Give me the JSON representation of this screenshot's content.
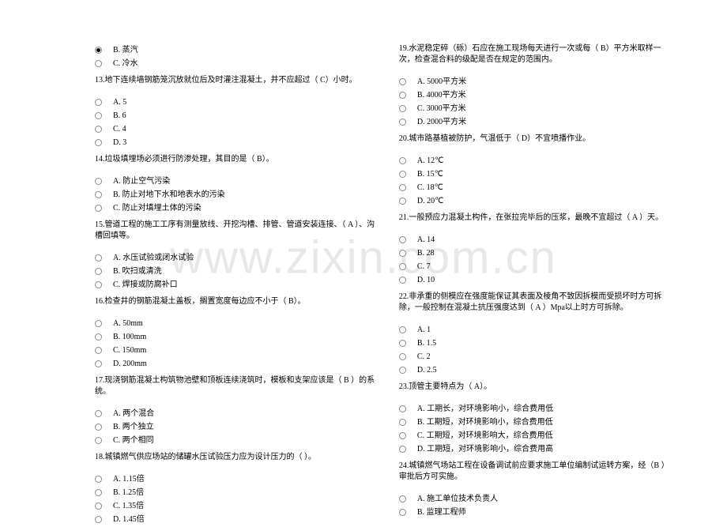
{
  "watermark": "www.zixin.com.cn",
  "left": {
    "pre_options": [
      {
        "label": "B. 蒸汽",
        "selected": true
      },
      {
        "label": "C. 冷水",
        "selected": false
      }
    ],
    "q13": {
      "text": "13.地下连续墙钢筋笼沉放就位后及时灌注混凝土，并不应超过（  C）小时。",
      "opts": [
        "A. 5",
        "B. 6",
        "C. 4",
        "D. 3"
      ]
    },
    "q14": {
      "text": "14.垃圾填埋场必须进行防渗处理，其目的是（  B）。",
      "opts": [
        "A. 防止空气污染",
        "B. 防止对地下水和地表水的污染",
        "C. 防止对填埋土体的污染"
      ]
    },
    "q15": {
      "text": "15.管道工程的施工工序有测量放线、开挖沟槽、排管、管道安装连接、（ A ）、沟槽回填等。",
      "opts": [
        "A. 水压试验或闭水试验",
        "B. 吹扫或清洗",
        "C. 焊接或防腐补口"
      ]
    },
    "q16": {
      "text": "16.检查井的钢筋混凝土盖板，搁置宽度每边应不小于（  B）。",
      "opts": [
        "A. 50mm",
        "B. 100mm",
        "C. 150mm",
        "D. 200mm"
      ]
    },
    "q17": {
      "text": "17.现浇钢筋混凝土构筑物池壁和顶板连续浇筑时，模板和支架应该是（ B  ）的系统。",
      "opts": [
        "A. 两个混合",
        "B. 两个独立",
        "C. 两个相同"
      ]
    },
    "q18": {
      "text": "18.城镇燃气供应场站的储罐水压试验压力应为设计压力的（  ）。",
      "opts": [
        "A. 1.15倍",
        "B. 1.25倍",
        "C. 1.35倍",
        "D. 1.45倍"
      ]
    }
  },
  "right": {
    "q19": {
      "text": "19.水泥稳定碎（砾）石应在施工现场每天进行一次或每（  B）平方米取样一次，检查混合料的级配是否在规定的范围内。",
      "opts": [
        "A. 5000平方米",
        "B. 4000平方米",
        "C. 3000平方米",
        "D. 2000平方米"
      ]
    },
    "q20": {
      "text": "20.城市路基植被防护，气温低于（  D）不宜喷播作业。",
      "opts": [
        "A. 12℃",
        "B. 15℃",
        "C. 18℃",
        "D. 20℃"
      ]
    },
    "q21": {
      "text": "21.一般预应力混凝土构件，在张拉完毕后的压浆，最晚不宜超过（ A ）天。",
      "opts": [
        "A. 14",
        "B. 28",
        "C. 7",
        "D. 10"
      ]
    },
    "q22": {
      "text": "22.非承重的侧模应在强度能保证其表面及棱角不致因拆模而受损坏时方可拆除，一般控制在混凝土抗压强度达到（ A ）Mpa以上时方可拆除。",
      "opts": [
        "A. 1",
        "B. 1.5",
        "C. 2",
        "D. 2.5"
      ]
    },
    "q23": {
      "text": "23.顶管主要特点为（  A）。",
      "opts": [
        "A. 工期长，对环境影响小，综合费用低",
        "B. 工期短，对环境影响小，综合费用低",
        "C. 工期短，对环境影响大，综合费用低",
        "D. 工期短，对环境影响小，综合费用高"
      ]
    },
    "q24": {
      "text": "24.城镇燃气场站工程在设备调试前应要求施工单位编制试运转方案，经（B  ）审批后方可实施。",
      "opts": [
        "A. 施工单位技术负责人",
        "B. 监理工程师"
      ]
    }
  }
}
